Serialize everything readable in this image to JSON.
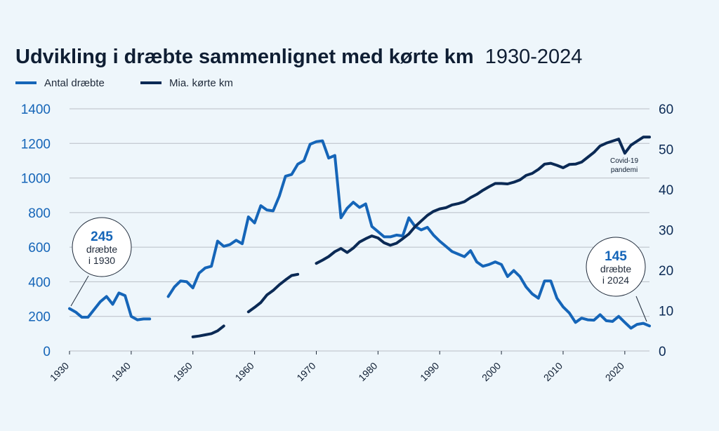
{
  "title": {
    "main": "Udvikling i dræbte sammenlignet med kørte km",
    "years": "1930-2024"
  },
  "colors": {
    "killed": "#1565b8",
    "km": "#0b2a55",
    "grid": "#b9bec6"
  },
  "chart_data": {
    "type": "line",
    "xlim": [
      1930,
      2024
    ],
    "x_ticks": [
      "1930",
      "1940",
      "1950",
      "1960",
      "1970",
      "1980",
      "1990",
      "2000",
      "2010",
      "2020"
    ],
    "y_left": {
      "lim": [
        0,
        1400
      ],
      "ticks": [
        "0",
        "200",
        "400",
        "600",
        "800",
        "1000",
        "1200",
        "1400"
      ]
    },
    "y_right": {
      "lim": [
        0,
        60
      ],
      "ticks": [
        "0",
        "10",
        "20",
        "30",
        "40",
        "50",
        "60"
      ]
    },
    "legend": {
      "placement": "top-left"
    },
    "series": [
      {
        "name": "Antal dræbte",
        "axis": "left",
        "segments": [
          [
            [
              1930,
              245
            ],
            [
              1931,
              225
            ],
            [
              1932,
              195
            ],
            [
              1933,
              195
            ],
            [
              1934,
              240
            ],
            [
              1935,
              285
            ],
            [
              1936,
              315
            ],
            [
              1937,
              270
            ],
            [
              1938,
              335
            ],
            [
              1939,
              320
            ],
            [
              1940,
              200
            ],
            [
              1941,
              180
            ],
            [
              1942,
              185
            ],
            [
              1943,
              185
            ]
          ],
          [
            [
              1946,
              315
            ],
            [
              1947,
              370
            ],
            [
              1948,
              405
            ],
            [
              1949,
              400
            ],
            [
              1950,
              365
            ],
            [
              1951,
              450
            ],
            [
              1952,
              480
            ],
            [
              1953,
              490
            ],
            [
              1954,
              635
            ],
            [
              1955,
              605
            ],
            [
              1956,
              615
            ],
            [
              1957,
              640
            ],
            [
              1958,
              620
            ],
            [
              1959,
              775
            ],
            [
              1960,
              740
            ],
            [
              1961,
              840
            ],
            [
              1962,
              815
            ],
            [
              1963,
              810
            ],
            [
              1964,
              895
            ],
            [
              1965,
              1010
            ],
            [
              1966,
              1020
            ],
            [
              1967,
              1080
            ],
            [
              1968,
              1100
            ],
            [
              1969,
              1195
            ],
            [
              1970,
              1210
            ],
            [
              1971,
              1215
            ],
            [
              1972,
              1115
            ],
            [
              1973,
              1130
            ],
            [
              1974,
              770
            ],
            [
              1975,
              825
            ],
            [
              1976,
              860
            ],
            [
              1977,
              830
            ],
            [
              1978,
              850
            ],
            [
              1979,
              720
            ],
            [
              1980,
              690
            ],
            [
              1981,
              660
            ],
            [
              1982,
              660
            ],
            [
              1983,
              670
            ],
            [
              1984,
              665
            ],
            [
              1985,
              770
            ],
            [
              1986,
              720
            ],
            [
              1987,
              700
            ],
            [
              1988,
              715
            ],
            [
              1989,
              670
            ],
            [
              1990,
              635
            ],
            [
              1991,
              605
            ],
            [
              1992,
              575
            ],
            [
              1993,
              560
            ],
            [
              1994,
              545
            ],
            [
              1995,
              580
            ],
            [
              1996,
              515
            ],
            [
              1997,
              490
            ],
            [
              1998,
              500
            ],
            [
              1999,
              515
            ],
            [
              2000,
              500
            ],
            [
              2001,
              430
            ],
            [
              2002,
              465
            ],
            [
              2003,
              430
            ],
            [
              2004,
              370
            ],
            [
              2005,
              330
            ],
            [
              2006,
              305
            ],
            [
              2007,
              405
            ],
            [
              2008,
              405
            ],
            [
              2009,
              305
            ],
            [
              2010,
              255
            ],
            [
              2011,
              220
            ],
            [
              2012,
              165
            ],
            [
              2013,
              190
            ],
            [
              2014,
              180
            ],
            [
              2015,
              178
            ],
            [
              2016,
              210
            ],
            [
              2017,
              175
            ],
            [
              2018,
              171
            ],
            [
              2019,
              200
            ],
            [
              2020,
              165
            ],
            [
              2021,
              132
            ],
            [
              2022,
              154
            ],
            [
              2023,
              160
            ],
            [
              2024,
              145
            ]
          ]
        ]
      },
      {
        "name": "Mia. kørte km",
        "axis": "right",
        "segments": [
          [
            [
              1950,
              3.5
            ],
            [
              1951,
              3.7
            ],
            [
              1952,
              4.0
            ],
            [
              1953,
              4.3
            ],
            [
              1954,
              5.0
            ],
            [
              1955,
              6.2
            ]
          ],
          [
            [
              1959,
              9.7
            ],
            [
              1960,
              10.8
            ],
            [
              1961,
              12.0
            ],
            [
              1962,
              13.9
            ],
            [
              1963,
              15.0
            ],
            [
              1964,
              16.4
            ],
            [
              1965,
              17.6
            ],
            [
              1966,
              18.7
            ],
            [
              1967,
              19.0
            ]
          ],
          [
            [
              1970,
              21.7
            ],
            [
              1971,
              22.5
            ],
            [
              1972,
              23.4
            ],
            [
              1973,
              24.6
            ],
            [
              1974,
              25.4
            ],
            [
              1975,
              24.4
            ],
            [
              1976,
              25.5
            ],
            [
              1977,
              27.0
            ],
            [
              1978,
              27.8
            ],
            [
              1979,
              28.5
            ],
            [
              1980,
              28.0
            ],
            [
              1981,
              26.8
            ],
            [
              1982,
              26.2
            ],
            [
              1983,
              26.7
            ],
            [
              1984,
              27.8
            ],
            [
              1985,
              29.0
            ],
            [
              1986,
              30.8
            ],
            [
              1987,
              32.2
            ],
            [
              1988,
              33.6
            ],
            [
              1989,
              34.6
            ],
            [
              1990,
              35.2
            ],
            [
              1991,
              35.5
            ],
            [
              1992,
              36.2
            ],
            [
              1993,
              36.5
            ],
            [
              1994,
              37.0
            ],
            [
              1995,
              38.0
            ],
            [
              1996,
              38.8
            ],
            [
              1997,
              39.8
            ],
            [
              1998,
              40.7
            ],
            [
              1999,
              41.5
            ],
            [
              2000,
              41.5
            ],
            [
              2001,
              41.4
            ],
            [
              2002,
              41.8
            ],
            [
              2003,
              42.4
            ],
            [
              2004,
              43.5
            ],
            [
              2005,
              44.0
            ],
            [
              2006,
              45.0
            ],
            [
              2007,
              46.3
            ],
            [
              2008,
              46.5
            ],
            [
              2009,
              46.0
            ],
            [
              2010,
              45.4
            ],
            [
              2011,
              46.2
            ],
            [
              2012,
              46.3
            ],
            [
              2013,
              46.8
            ],
            [
              2014,
              48.0
            ],
            [
              2015,
              49.2
            ],
            [
              2016,
              50.8
            ],
            [
              2017,
              51.5
            ],
            [
              2018,
              52.0
            ],
            [
              2019,
              52.5
            ],
            [
              2020,
              49.0
            ],
            [
              2021,
              51.0
            ],
            [
              2022,
              52.0
            ],
            [
              2023,
              53.0
            ],
            [
              2024,
              53.0
            ]
          ]
        ]
      }
    ],
    "annotations": {
      "callout_1930": {
        "value": "245",
        "line1": "dræbte",
        "line2": "i 1930"
      },
      "callout_2024": {
        "value": "145",
        "line1": "dræbte",
        "line2": "i 2024"
      },
      "covid": {
        "line1": "Covid-19",
        "line2": "pandemi"
      }
    }
  }
}
